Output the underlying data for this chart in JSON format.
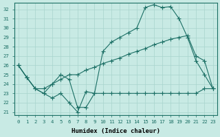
{
  "xlabel": "Humidex (Indice chaleur)",
  "xlim": [
    -0.5,
    23.5
  ],
  "ylim": [
    20.7,
    32.7
  ],
  "yticks": [
    21,
    22,
    23,
    24,
    25,
    26,
    27,
    28,
    29,
    30,
    31,
    32
  ],
  "xticks": [
    0,
    1,
    2,
    3,
    4,
    5,
    6,
    7,
    8,
    9,
    10,
    11,
    12,
    13,
    14,
    15,
    16,
    17,
    18,
    19,
    20,
    21,
    22,
    23
  ],
  "bg_color": "#c8eae4",
  "line_color": "#1a6e64",
  "grid_color": "#a8d4cc",
  "line1": {
    "x": [
      0,
      1,
      2,
      3,
      4,
      5,
      6,
      7,
      8,
      9,
      10,
      11,
      12,
      13,
      14,
      15,
      16,
      17,
      18,
      19,
      20,
      21,
      22,
      23
    ],
    "y": [
      26,
      24.7,
      23.5,
      23.0,
      24.0,
      25.0,
      24.5,
      21.5,
      21.5,
      23.0,
      27.5,
      28.5,
      29.0,
      29.5,
      30.0,
      32.2,
      32.5,
      32.2,
      32.3,
      31.0,
      29.0,
      26.5,
      25.0,
      23.5
    ]
  },
  "line2": {
    "x": [
      0,
      1,
      2,
      3,
      4,
      5,
      6,
      7,
      8,
      9,
      10,
      11,
      12,
      13,
      14,
      15,
      16,
      17,
      18,
      19,
      20,
      21,
      22,
      23
    ],
    "y": [
      26,
      24.7,
      23.5,
      23.5,
      24.0,
      24.5,
      25.0,
      25.0,
      25.5,
      25.8,
      26.2,
      26.5,
      26.8,
      27.2,
      27.5,
      27.8,
      28.2,
      28.5,
      28.8,
      29.0,
      29.2,
      27.0,
      26.5,
      23.5
    ]
  },
  "line3": {
    "x": [
      0,
      1,
      2,
      3,
      4,
      5,
      6,
      7,
      8,
      9,
      10,
      11,
      12,
      13,
      14,
      15,
      16,
      17,
      18,
      19,
      20,
      21,
      22,
      23
    ],
    "y": [
      26,
      24.7,
      23.5,
      23.0,
      22.5,
      23.0,
      22.0,
      21.0,
      23.2,
      23.0,
      23.0,
      23.0,
      23.0,
      23.0,
      23.0,
      23.0,
      23.0,
      23.0,
      23.0,
      23.0,
      23.0,
      23.0,
      23.5,
      23.5
    ]
  }
}
